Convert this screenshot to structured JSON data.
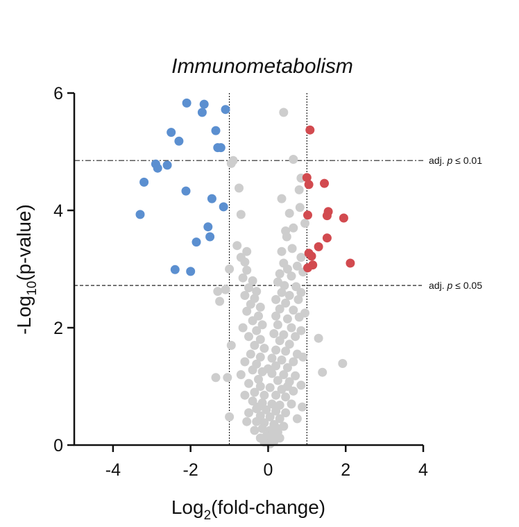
{
  "chart_data": {
    "type": "scatter",
    "title": "Immunometabolism",
    "xlabel": {
      "base": "Log",
      "sub": "2",
      "rest": "(fold-change)"
    },
    "ylabel": {
      "base": "-Log",
      "sub": "10",
      "rest": "(p-value)"
    },
    "xlim": [
      -5,
      4
    ],
    "ylim": [
      0,
      6
    ],
    "x_ticks": [
      -4,
      -2,
      0,
      2,
      4
    ],
    "y_ticks": [
      0,
      2,
      4,
      6
    ],
    "grid": false,
    "legend": "none",
    "vlines": [
      -1,
      1
    ],
    "thresholds": [
      {
        "y": 4.85,
        "label_prefix": "adj.",
        "label_p": "p",
        "label_suffix": "≤ 0.01",
        "style": "dash-dot"
      },
      {
        "y": 2.72,
        "label_prefix": "adj.",
        "label_p": "p",
        "label_suffix": "≤ 0.05",
        "style": "dashed"
      }
    ],
    "colors": {
      "down": "#5b8fd0",
      "up": "#d24a4f",
      "ns": "#cdcdcd"
    },
    "series": [
      {
        "group": "down",
        "points": [
          [
            -2.1,
            5.83
          ],
          [
            -1.65,
            5.81
          ],
          [
            -1.7,
            5.67
          ],
          [
            -1.1,
            5.72
          ],
          [
            -2.5,
            5.33
          ],
          [
            -1.35,
            5.36
          ],
          [
            -2.3,
            5.18
          ],
          [
            -1.3,
            5.07
          ],
          [
            -1.22,
            5.07
          ],
          [
            -2.9,
            4.79
          ],
          [
            -2.85,
            4.72
          ],
          [
            -2.6,
            4.77
          ],
          [
            -3.2,
            4.48
          ],
          [
            -2.12,
            4.33
          ],
          [
            -1.45,
            4.2
          ],
          [
            -1.15,
            4.06
          ],
          [
            -3.3,
            3.93
          ],
          [
            -1.55,
            3.72
          ],
          [
            -1.5,
            3.55
          ],
          [
            -1.85,
            3.46
          ],
          [
            -2.4,
            2.99
          ],
          [
            -2.0,
            2.96
          ]
        ]
      },
      {
        "group": "up",
        "points": [
          [
            1.08,
            5.37
          ],
          [
            1.0,
            4.56
          ],
          [
            1.05,
            4.44
          ],
          [
            1.45,
            4.46
          ],
          [
            1.55,
            3.98
          ],
          [
            1.52,
            3.91
          ],
          [
            1.02,
            3.92
          ],
          [
            1.95,
            3.87
          ],
          [
            1.52,
            3.53
          ],
          [
            1.3,
            3.38
          ],
          [
            1.05,
            3.27
          ],
          [
            1.12,
            3.22
          ],
          [
            2.12,
            3.1
          ],
          [
            1.15,
            3.07
          ],
          [
            1.02,
            3.02
          ]
        ]
      },
      {
        "group": "ns",
        "points": [
          [
            0.4,
            5.67
          ],
          [
            0.65,
            4.87
          ],
          [
            -0.9,
            4.85
          ],
          [
            -0.95,
            4.8
          ],
          [
            -0.75,
            4.38
          ],
          [
            0.85,
            4.55
          ],
          [
            0.8,
            4.35
          ],
          [
            0.35,
            4.2
          ],
          [
            0.55,
            3.95
          ],
          [
            -0.7,
            3.93
          ],
          [
            0.82,
            4.05
          ],
          [
            0.95,
            3.78
          ],
          [
            0.45,
            3.65
          ],
          [
            0.65,
            3.7
          ],
          [
            0.48,
            3.55
          ],
          [
            -0.8,
            3.4
          ],
          [
            -0.55,
            3.3
          ],
          [
            0.35,
            3.3
          ],
          [
            0.62,
            3.35
          ],
          [
            0.85,
            3.2
          ],
          [
            -0.7,
            3.2
          ],
          [
            -0.6,
            3.12
          ],
          [
            0.4,
            3.1
          ],
          [
            0.5,
            3.0
          ],
          [
            0.75,
            3.05
          ],
          [
            -1.0,
            3.0
          ],
          [
            -0.55,
            2.98
          ],
          [
            0.3,
            2.92
          ],
          [
            0.6,
            2.88
          ],
          [
            0.9,
            2.95
          ],
          [
            -0.65,
            2.85
          ],
          [
            -0.4,
            2.8
          ],
          [
            0.25,
            2.78
          ],
          [
            0.42,
            2.72
          ],
          [
            0.72,
            2.7
          ],
          [
            -0.5,
            2.68
          ],
          [
            -0.3,
            2.62
          ],
          [
            0.35,
            2.6
          ],
          [
            0.55,
            2.55
          ],
          [
            0.85,
            2.6
          ],
          [
            -1.3,
            2.62
          ],
          [
            -1.1,
            2.65
          ],
          [
            -0.6,
            2.55
          ],
          [
            -0.35,
            2.5
          ],
          [
            0.2,
            2.48
          ],
          [
            0.45,
            2.42
          ],
          [
            0.78,
            2.48
          ],
          [
            -0.45,
            2.4
          ],
          [
            -0.2,
            2.35
          ],
          [
            0.3,
            2.32
          ],
          [
            0.65,
            2.3
          ],
          [
            -1.25,
            2.45
          ],
          [
            -0.55,
            2.28
          ],
          [
            -0.25,
            2.2
          ],
          [
            0.2,
            2.2
          ],
          [
            0.5,
            2.15
          ],
          [
            0.8,
            2.18
          ],
          [
            0.95,
            2.25
          ],
          [
            -0.4,
            2.12
          ],
          [
            -0.15,
            2.05
          ],
          [
            0.25,
            2.05
          ],
          [
            0.6,
            2.0
          ],
          [
            0.85,
            1.95
          ],
          [
            -0.65,
            2.0
          ],
          [
            -0.3,
            1.95
          ],
          [
            0.15,
            1.9
          ],
          [
            0.4,
            1.88
          ],
          [
            0.7,
            1.85
          ],
          [
            -0.5,
            1.85
          ],
          [
            -0.2,
            1.8
          ],
          [
            0.3,
            1.78
          ],
          [
            0.55,
            1.72
          ],
          [
            1.3,
            1.82
          ],
          [
            -0.35,
            1.7
          ],
          [
            -0.1,
            1.65
          ],
          [
            0.2,
            1.62
          ],
          [
            0.45,
            1.6
          ],
          [
            0.75,
            1.55
          ],
          [
            -0.95,
            1.7
          ],
          [
            -0.45,
            1.55
          ],
          [
            -0.2,
            1.5
          ],
          [
            0.1,
            1.48
          ],
          [
            0.35,
            1.45
          ],
          [
            0.65,
            1.42
          ],
          [
            0.9,
            1.5
          ],
          [
            -0.6,
            1.42
          ],
          [
            -0.3,
            1.38
          ],
          [
            0.2,
            1.35
          ],
          [
            0.5,
            1.32
          ],
          [
            1.92,
            1.39
          ],
          [
            -0.4,
            1.28
          ],
          [
            -0.15,
            1.25
          ],
          [
            0.1,
            1.22
          ],
          [
            0.4,
            1.2
          ],
          [
            0.7,
            1.18
          ],
          [
            -0.7,
            1.2
          ],
          [
            -0.25,
            1.12
          ],
          [
            0.25,
            1.1
          ],
          [
            0.55,
            1.08
          ],
          [
            -1.35,
            1.15
          ],
          [
            -1.05,
            1.15
          ],
          [
            1.4,
            1.24
          ],
          [
            -0.5,
            1.05
          ],
          [
            -0.2,
            1.0
          ],
          [
            0.05,
            0.98
          ],
          [
            0.35,
            0.95
          ],
          [
            0.65,
            0.92
          ],
          [
            0.85,
            1.02
          ],
          [
            -0.35,
            0.9
          ],
          [
            -0.1,
            0.85
          ],
          [
            0.2,
            0.85
          ],
          [
            0.45,
            0.82
          ],
          [
            -0.6,
            0.85
          ],
          [
            -0.4,
            0.75
          ],
          [
            -0.15,
            0.72
          ],
          [
            0.1,
            0.7
          ],
          [
            0.3,
            0.68
          ],
          [
            0.6,
            0.7
          ],
          [
            0.88,
            0.65
          ],
          [
            -0.3,
            0.62
          ],
          [
            -0.05,
            0.6
          ],
          [
            0.2,
            0.58
          ],
          [
            0.45,
            0.55
          ],
          [
            -0.5,
            0.55
          ],
          [
            -0.2,
            0.5
          ],
          [
            0.05,
            0.48
          ],
          [
            0.3,
            0.45
          ],
          [
            0.75,
            0.45
          ],
          [
            -1.0,
            0.48
          ],
          [
            -0.55,
            0.4
          ],
          [
            -0.3,
            0.4
          ],
          [
            -0.1,
            0.38
          ],
          [
            0.15,
            0.35
          ],
          [
            0.4,
            0.32
          ],
          [
            -0.15,
            0.28
          ],
          [
            0.05,
            0.25
          ],
          [
            0.25,
            0.22
          ],
          [
            -0.35,
            0.25
          ],
          [
            0.1,
            0.18
          ],
          [
            -0.05,
            0.15
          ],
          [
            0.3,
            0.12
          ],
          [
            -0.2,
            0.12
          ],
          [
            0.0,
            0.08
          ],
          [
            0.15,
            0.06
          ],
          [
            -0.1,
            0.05
          ],
          [
            0.05,
            0.02
          ],
          [
            0.2,
            0.3
          ],
          [
            -0.25,
            0.65
          ],
          [
            0.5,
            1.0
          ],
          [
            0.0,
            1.3
          ]
        ]
      }
    ]
  }
}
